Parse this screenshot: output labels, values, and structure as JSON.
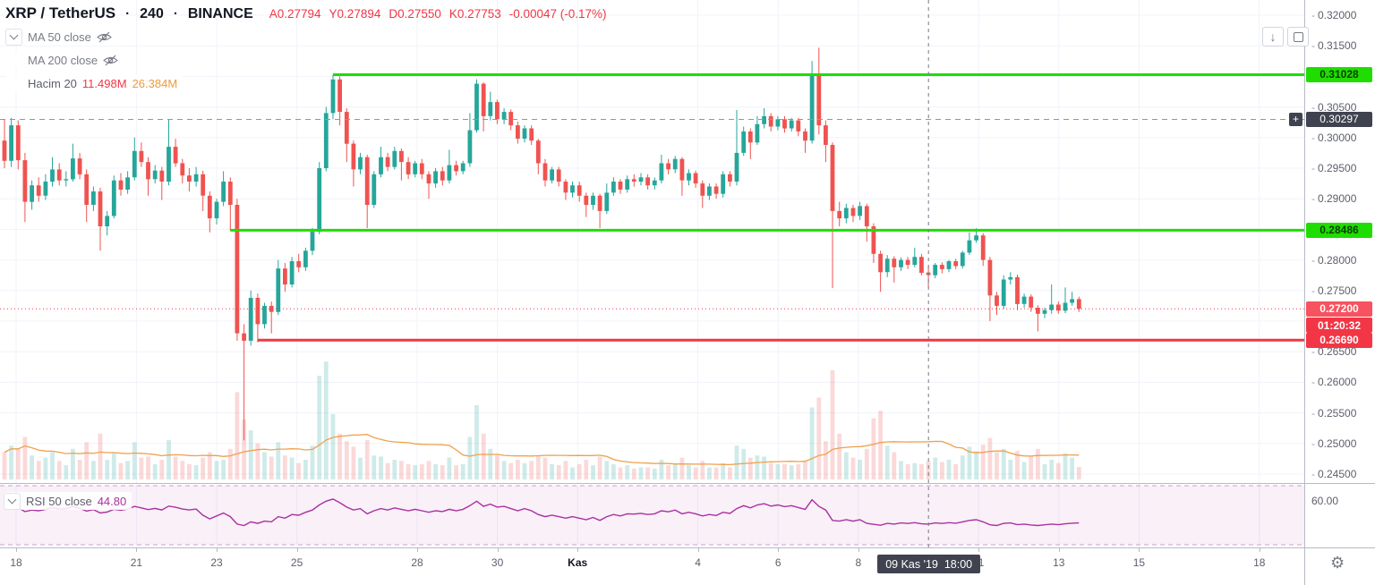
{
  "header": {
    "symbol": "XRP / TetherUS",
    "sep": "·",
    "interval": "240",
    "exchange": "BINANCE",
    "ohlc": {
      "open": "A0.27794",
      "high": "Y0.27894",
      "low": "D0.27550",
      "close": "K0.27753",
      "change": "-0.00047 (-0.17%)"
    }
  },
  "indicators": {
    "ma50_label": "MA 50 close",
    "ma200_label": "MA 200 close",
    "vol_label": "Hacim 20",
    "vol_value": "11.498M",
    "vol_ma_value": "26.384M",
    "rsi_label": "RSI 50 close",
    "rsi_value": "44.80"
  },
  "buttons": {
    "scroll_to_recent": "↓"
  },
  "badges": {
    "resistance1": "0.31028",
    "crosshair_price": "0.30297",
    "resistance2": "0.28486",
    "last_price": "0.27200",
    "countdown": "01:20:32",
    "support": "0.26690",
    "time": "09 Kas '19  18:00"
  },
  "price_axis": {
    "ticks": [
      {
        "label": "0.32000",
        "p": 0.32
      },
      {
        "label": "0.31500",
        "p": 0.315
      },
      {
        "label": "0.30500",
        "p": 0.305
      },
      {
        "label": "0.30000",
        "p": 0.3
      },
      {
        "label": "0.29500",
        "p": 0.295
      },
      {
        "label": "0.29000",
        "p": 0.29
      },
      {
        "label": "0.28000",
        "p": 0.28
      },
      {
        "label": "0.27500",
        "p": 0.275
      },
      {
        "label": "0.26500",
        "p": 0.265
      },
      {
        "label": "0.26000",
        "p": 0.26
      },
      {
        "label": "0.25500",
        "p": 0.255
      },
      {
        "label": "0.25000",
        "p": 0.25
      },
      {
        "label": "0.24500",
        "p": 0.245
      }
    ]
  },
  "rsi_axis": {
    "label": "60.00",
    "value": 60
  },
  "time_axis": {
    "ticks": [
      {
        "label": "18",
        "d": 0
      },
      {
        "label": "21",
        "d": 3
      },
      {
        "label": "23",
        "d": 5
      },
      {
        "label": "25",
        "d": 7
      },
      {
        "label": "28",
        "d": 10
      },
      {
        "label": "30",
        "d": 12
      },
      {
        "label": "Kas",
        "d": 14,
        "major": true
      },
      {
        "label": "4",
        "d": 17
      },
      {
        "label": "6",
        "d": 19
      },
      {
        "label": "8",
        "d": 21
      },
      {
        "label": "11",
        "d": 24
      },
      {
        "label": "13",
        "d": 26
      },
      {
        "label": "15",
        "d": 28
      },
      {
        "label": "18",
        "d": 31
      }
    ]
  },
  "chart_data": {
    "type": "candlestick",
    "title": "XRP / TetherUS 240 BINANCE",
    "legend_bar_ohlc": {
      "open": 0.27794,
      "high": 0.27894,
      "low": 0.2755,
      "close": 0.27753
    },
    "levels": {
      "resistance1": 0.31028,
      "crosshair_price": 0.30297,
      "resistance2": 0.28486,
      "support": 0.2669,
      "last_price": 0.272
    },
    "level_start_bar": {
      "resistance1": 48,
      "resistance2": 33,
      "support": 37
    },
    "crosshair_day_offset": 22.75,
    "price_range": [
      0.245,
      0.32
    ],
    "rsi_range_band": [
      30,
      70
    ],
    "colors": {
      "up": "#26a69a",
      "down": "#ef5350",
      "vol_up": "rgba(38,166,154,0.22)",
      "vol_down": "rgba(239,83,80,0.22)",
      "vol_ma": "#efa14b",
      "line_green": "#1fdd00",
      "line_red": "#f23645",
      "dashed": "#9096a1",
      "crosshair": "#787b86",
      "rsi": "#aa31a0",
      "rsi_band_fill": "rgba(170,49,160,0.07)",
      "rsi_band_edge": "#c9a override",
      "grid": "#f0f3fa"
    },
    "candles": [
      [
        0.2995,
        0.303,
        0.295,
        0.2962,
        25
      ],
      [
        0.2962,
        0.3032,
        0.2952,
        0.302,
        31
      ],
      [
        0.302,
        0.3028,
        0.2948,
        0.2963,
        28
      ],
      [
        0.2963,
        0.2975,
        0.2862,
        0.2895,
        39
      ],
      [
        0.2895,
        0.293,
        0.2882,
        0.2922,
        22
      ],
      [
        0.2922,
        0.2935,
        0.2895,
        0.2905,
        17
      ],
      [
        0.2905,
        0.294,
        0.2898,
        0.2928,
        20
      ],
      [
        0.2928,
        0.2968,
        0.292,
        0.2948,
        25
      ],
      [
        0.2948,
        0.2958,
        0.2922,
        0.293,
        17
      ],
      [
        0.293,
        0.2945,
        0.292,
        0.2932,
        13
      ],
      [
        0.2932,
        0.299,
        0.2928,
        0.2966,
        28
      ],
      [
        0.2966,
        0.2975,
        0.2932,
        0.294,
        18
      ],
      [
        0.294,
        0.2948,
        0.2862,
        0.289,
        34
      ],
      [
        0.289,
        0.292,
        0.288,
        0.2912,
        17
      ],
      [
        0.2912,
        0.2918,
        0.2815,
        0.2855,
        42
      ],
      [
        0.2855,
        0.288,
        0.284,
        0.2872,
        18
      ],
      [
        0.2872,
        0.2938,
        0.2868,
        0.293,
        24
      ],
      [
        0.293,
        0.2942,
        0.2905,
        0.2915,
        15
      ],
      [
        0.2915,
        0.2945,
        0.2908,
        0.2935,
        17
      ],
      [
        0.2935,
        0.3,
        0.293,
        0.2978,
        34
      ],
      [
        0.2978,
        0.2992,
        0.2952,
        0.296,
        20
      ],
      [
        0.296,
        0.2968,
        0.2905,
        0.2932,
        21
      ],
      [
        0.2932,
        0.2955,
        0.2925,
        0.2946,
        14
      ],
      [
        0.2946,
        0.2952,
        0.2898,
        0.2928,
        18
      ],
      [
        0.2928,
        0.303,
        0.2922,
        0.2985,
        36
      ],
      [
        0.2985,
        0.2998,
        0.2952,
        0.2958,
        21
      ],
      [
        0.2958,
        0.2965,
        0.2925,
        0.2938,
        17
      ],
      [
        0.2938,
        0.295,
        0.2912,
        0.2928,
        14
      ],
      [
        0.2928,
        0.2952,
        0.292,
        0.294,
        13
      ],
      [
        0.294,
        0.2946,
        0.288,
        0.2905,
        20
      ],
      [
        0.2905,
        0.2912,
        0.2845,
        0.2868,
        25
      ],
      [
        0.2868,
        0.29,
        0.2858,
        0.2895,
        17
      ],
      [
        0.2895,
        0.2945,
        0.2888,
        0.2928,
        18
      ],
      [
        0.2928,
        0.2935,
        0.2848,
        0.289,
        28
      ],
      [
        0.289,
        0.29,
        0.2668,
        0.268,
        80
      ],
      [
        0.268,
        0.2695,
        0.2505,
        0.2668,
        55
      ],
      [
        0.2668,
        0.275,
        0.266,
        0.2738,
        45
      ],
      [
        0.2738,
        0.2745,
        0.2665,
        0.2695,
        33
      ],
      [
        0.2695,
        0.273,
        0.2688,
        0.2725,
        25
      ],
      [
        0.2725,
        0.2732,
        0.268,
        0.2715,
        21
      ],
      [
        0.2715,
        0.28,
        0.271,
        0.2786,
        34
      ],
      [
        0.2786,
        0.2795,
        0.2748,
        0.276,
        22
      ],
      [
        0.276,
        0.2805,
        0.2755,
        0.2798,
        20
      ],
      [
        0.2798,
        0.281,
        0.278,
        0.2788,
        15
      ],
      [
        0.2788,
        0.282,
        0.2782,
        0.2815,
        18
      ],
      [
        0.2815,
        0.2852,
        0.2808,
        0.2846,
        31
      ],
      [
        0.2846,
        0.296,
        0.2842,
        0.295,
        95
      ],
      [
        0.295,
        0.305,
        0.2945,
        0.304,
        108
      ],
      [
        0.304,
        0.31028,
        0.303,
        0.3095,
        60
      ],
      [
        0.3095,
        0.31,
        0.302,
        0.3042,
        42
      ],
      [
        0.3042,
        0.3048,
        0.296,
        0.299,
        35
      ],
      [
        0.299,
        0.2995,
        0.292,
        0.2948,
        30
      ],
      [
        0.2948,
        0.2975,
        0.294,
        0.2968,
        20
      ],
      [
        0.2968,
        0.2972,
        0.2852,
        0.289,
        36
      ],
      [
        0.289,
        0.2945,
        0.2885,
        0.294,
        22
      ],
      [
        0.294,
        0.2985,
        0.2935,
        0.2968,
        21
      ],
      [
        0.2968,
        0.2975,
        0.2945,
        0.2952,
        15
      ],
      [
        0.2952,
        0.2985,
        0.2948,
        0.2978,
        18
      ],
      [
        0.2978,
        0.2982,
        0.293,
        0.296,
        17
      ],
      [
        0.296,
        0.2968,
        0.2932,
        0.294,
        14
      ],
      [
        0.294,
        0.2962,
        0.2935,
        0.2958,
        13
      ],
      [
        0.2958,
        0.2965,
        0.2932,
        0.294,
        14
      ],
      [
        0.294,
        0.2945,
        0.29,
        0.2925,
        17
      ],
      [
        0.2925,
        0.295,
        0.2918,
        0.2945,
        14
      ],
      [
        0.2945,
        0.2952,
        0.2922,
        0.293,
        13
      ],
      [
        0.293,
        0.298,
        0.2925,
        0.2955,
        20
      ],
      [
        0.2955,
        0.2962,
        0.2938,
        0.2945,
        13
      ],
      [
        0.2945,
        0.2962,
        0.294,
        0.2958,
        14
      ],
      [
        0.2958,
        0.304,
        0.2952,
        0.3012,
        39
      ],
      [
        0.3012,
        0.3095,
        0.3008,
        0.3088,
        68
      ],
      [
        0.3088,
        0.309,
        0.301,
        0.3035,
        42
      ],
      [
        0.3035,
        0.3075,
        0.3028,
        0.3058,
        28
      ],
      [
        0.3058,
        0.3062,
        0.3022,
        0.303,
        22
      ],
      [
        0.303,
        0.3048,
        0.3022,
        0.3042,
        17
      ],
      [
        0.3042,
        0.3046,
        0.3012,
        0.302,
        15
      ],
      [
        0.302,
        0.3026,
        0.299,
        0.2998,
        18
      ],
      [
        0.2998,
        0.302,
        0.2992,
        0.3015,
        15
      ],
      [
        0.3015,
        0.302,
        0.2988,
        0.2995,
        17
      ],
      [
        0.2995,
        0.2998,
        0.294,
        0.2958,
        22
      ],
      [
        0.2958,
        0.2965,
        0.292,
        0.293,
        20
      ],
      [
        0.293,
        0.2952,
        0.2925,
        0.2948,
        14
      ],
      [
        0.2948,
        0.2952,
        0.292,
        0.2928,
        13
      ],
      [
        0.2928,
        0.2932,
        0.2898,
        0.291,
        17
      ],
      [
        0.291,
        0.2928,
        0.2902,
        0.2922,
        11
      ],
      [
        0.2922,
        0.2928,
        0.2895,
        0.2905,
        14
      ],
      [
        0.2905,
        0.291,
        0.287,
        0.289,
        18
      ],
      [
        0.289,
        0.291,
        0.2882,
        0.2905,
        13
      ],
      [
        0.2905,
        0.2908,
        0.2852,
        0.288,
        21
      ],
      [
        0.288,
        0.2925,
        0.2875,
        0.291,
        17
      ],
      [
        0.291,
        0.2935,
        0.2905,
        0.2928,
        14
      ],
      [
        0.2928,
        0.2932,
        0.2908,
        0.2915,
        11
      ],
      [
        0.2915,
        0.2938,
        0.291,
        0.2932,
        13
      ],
      [
        0.2932,
        0.294,
        0.292,
        0.2928,
        10
      ],
      [
        0.2928,
        0.2942,
        0.2922,
        0.2935,
        11
      ],
      [
        0.2935,
        0.294,
        0.2915,
        0.2922,
        11
      ],
      [
        0.2922,
        0.2935,
        0.2915,
        0.293,
        10
      ],
      [
        0.293,
        0.2972,
        0.2925,
        0.2958,
        18
      ],
      [
        0.2958,
        0.2965,
        0.294,
        0.2948,
        13
      ],
      [
        0.2948,
        0.297,
        0.2942,
        0.2965,
        14
      ],
      [
        0.2965,
        0.2968,
        0.2905,
        0.293,
        20
      ],
      [
        0.293,
        0.2948,
        0.2922,
        0.2942,
        13
      ],
      [
        0.2942,
        0.2946,
        0.2918,
        0.2925,
        11
      ],
      [
        0.2925,
        0.293,
        0.2885,
        0.2905,
        17
      ],
      [
        0.2905,
        0.2925,
        0.2898,
        0.292,
        11
      ],
      [
        0.292,
        0.2925,
        0.29,
        0.2908,
        11
      ],
      [
        0.2908,
        0.2945,
        0.2902,
        0.294,
        15
      ],
      [
        0.294,
        0.2945,
        0.292,
        0.2928,
        11
      ],
      [
        0.2928,
        0.3045,
        0.2922,
        0.2975,
        31
      ],
      [
        0.2975,
        0.3018,
        0.297,
        0.301,
        28
      ],
      [
        0.301,
        0.3015,
        0.2965,
        0.2992,
        20
      ],
      [
        0.2992,
        0.3035,
        0.2988,
        0.3022,
        22
      ],
      [
        0.3022,
        0.3048,
        0.3015,
        0.3035,
        21
      ],
      [
        0.3035,
        0.304,
        0.301,
        0.3018,
        15
      ],
      [
        0.3018,
        0.3035,
        0.3012,
        0.303,
        14
      ],
      [
        0.303,
        0.3035,
        0.3008,
        0.3015,
        14
      ],
      [
        0.3015,
        0.3032,
        0.301,
        0.3028,
        13
      ],
      [
        0.3028,
        0.3032,
        0.3002,
        0.301,
        14
      ],
      [
        0.301,
        0.3015,
        0.2975,
        0.2995,
        17
      ],
      [
        0.2995,
        0.3125,
        0.299,
        0.3103,
        66
      ],
      [
        0.3103,
        0.3147,
        0.3005,
        0.302,
        75
      ],
      [
        0.302,
        0.3028,
        0.296,
        0.2988,
        35
      ],
      [
        0.2988,
        0.2992,
        0.2754,
        0.288,
        100
      ],
      [
        0.288,
        0.2895,
        0.2855,
        0.2868,
        42
      ],
      [
        0.2868,
        0.2892,
        0.286,
        0.2885,
        25
      ],
      [
        0.2885,
        0.289,
        0.2862,
        0.2872,
        20
      ],
      [
        0.2872,
        0.2895,
        0.2865,
        0.2888,
        18
      ],
      [
        0.2888,
        0.2892,
        0.283,
        0.2855,
        28
      ],
      [
        0.2855,
        0.286,
        0.2795,
        0.281,
        56
      ],
      [
        0.281,
        0.2815,
        0.2748,
        0.278,
        63
      ],
      [
        0.278,
        0.2808,
        0.2772,
        0.2802,
        31
      ],
      [
        0.2802,
        0.2806,
        0.2763,
        0.2788,
        25
      ],
      [
        0.2788,
        0.2804,
        0.2782,
        0.28,
        17
      ],
      [
        0.28,
        0.2805,
        0.2785,
        0.2792,
        14
      ],
      [
        0.2792,
        0.282,
        0.2788,
        0.2805,
        15
      ],
      [
        0.2805,
        0.281,
        0.2775,
        0.2779,
        14
      ],
      [
        0.27794,
        0.27894,
        0.2755,
        0.27753,
        17
      ],
      [
        0.2775,
        0.2795,
        0.277,
        0.2792,
        20
      ],
      [
        0.2792,
        0.2796,
        0.2778,
        0.2785,
        16
      ],
      [
        0.2785,
        0.28,
        0.278,
        0.2798,
        18
      ],
      [
        0.2798,
        0.2802,
        0.2785,
        0.279,
        14
      ],
      [
        0.279,
        0.2815,
        0.2786,
        0.2812,
        22
      ],
      [
        0.2812,
        0.2845,
        0.2808,
        0.2832,
        30
      ],
      [
        0.2832,
        0.2852,
        0.2828,
        0.284,
        26
      ],
      [
        0.284,
        0.2844,
        0.279,
        0.28,
        32
      ],
      [
        0.28,
        0.2805,
        0.27,
        0.2742,
        38
      ],
      [
        0.2742,
        0.2748,
        0.271,
        0.2725,
        25
      ],
      [
        0.2725,
        0.2775,
        0.272,
        0.2768,
        28
      ],
      [
        0.2768,
        0.278,
        0.276,
        0.2772,
        18
      ],
      [
        0.2772,
        0.2776,
        0.2718,
        0.2728,
        26
      ],
      [
        0.2728,
        0.2745,
        0.2722,
        0.274,
        16
      ],
      [
        0.274,
        0.2744,
        0.2715,
        0.2722,
        22
      ],
      [
        0.2722,
        0.2726,
        0.2683,
        0.2712,
        28
      ],
      [
        0.2712,
        0.2722,
        0.2705,
        0.2718,
        14
      ],
      [
        0.2718,
        0.276,
        0.2712,
        0.2727,
        18
      ],
      [
        0.2727,
        0.2732,
        0.2712,
        0.2717,
        15
      ],
      [
        0.2717,
        0.2755,
        0.2713,
        0.273,
        24
      ],
      [
        0.273,
        0.2748,
        0.2725,
        0.2736,
        20
      ],
      [
        0.2736,
        0.274,
        0.2715,
        0.272,
        11.498
      ]
    ],
    "rsi": [
      57,
      56.5,
      55,
      52.5,
      53.5,
      53,
      54,
      55,
      54.2,
      54.4,
      55.8,
      54.6,
      52.8,
      53.8,
      51.5,
      52.2,
      54,
      53.4,
      54.2,
      56,
      55,
      53.8,
      54.6,
      53.6,
      56.2,
      55.4,
      54.2,
      53.6,
      54.2,
      50,
      47.5,
      49.5,
      51.5,
      49,
      44,
      43,
      45.5,
      44.5,
      46,
      45.5,
      49,
      48,
      50.5,
      50,
      52,
      53.5,
      57,
      59.5,
      61,
      58.5,
      55.5,
      53.5,
      54.5,
      51,
      53,
      54.5,
      53.5,
      55,
      54,
      53,
      54,
      53,
      52,
      53,
      52.5,
      54,
      53,
      54,
      56.5,
      59.5,
      56,
      57.5,
      55.5,
      56,
      54.5,
      53,
      54.5,
      53,
      50.5,
      49,
      50,
      49,
      48,
      49,
      48,
      47,
      48.5,
      46.5,
      49,
      50.5,
      49.5,
      51,
      50.8,
      51.3,
      50.5,
      51,
      53,
      52.3,
      53.5,
      51,
      52,
      51,
      49.5,
      50.5,
      49.8,
      52,
      51.2,
      54.5,
      56.5,
      55,
      57,
      57.8,
      56.2,
      57,
      55.8,
      56.5,
      55.2,
      54,
      60.5,
      56,
      53.5,
      46.5,
      46,
      47,
      46,
      47,
      44.5,
      43.8,
      43.2,
      44.5,
      44,
      44.8,
      44.4,
      45,
      44.2,
      44,
      44.8,
      44.4,
      45,
      44.6,
      45.5,
      46.5,
      47,
      45.5,
      43.5,
      43,
      44.5,
      44.8,
      43.6,
      44,
      43.4,
      43,
      43.5,
      44,
      43.6,
      44.2,
      44.6,
      44.8
    ]
  }
}
